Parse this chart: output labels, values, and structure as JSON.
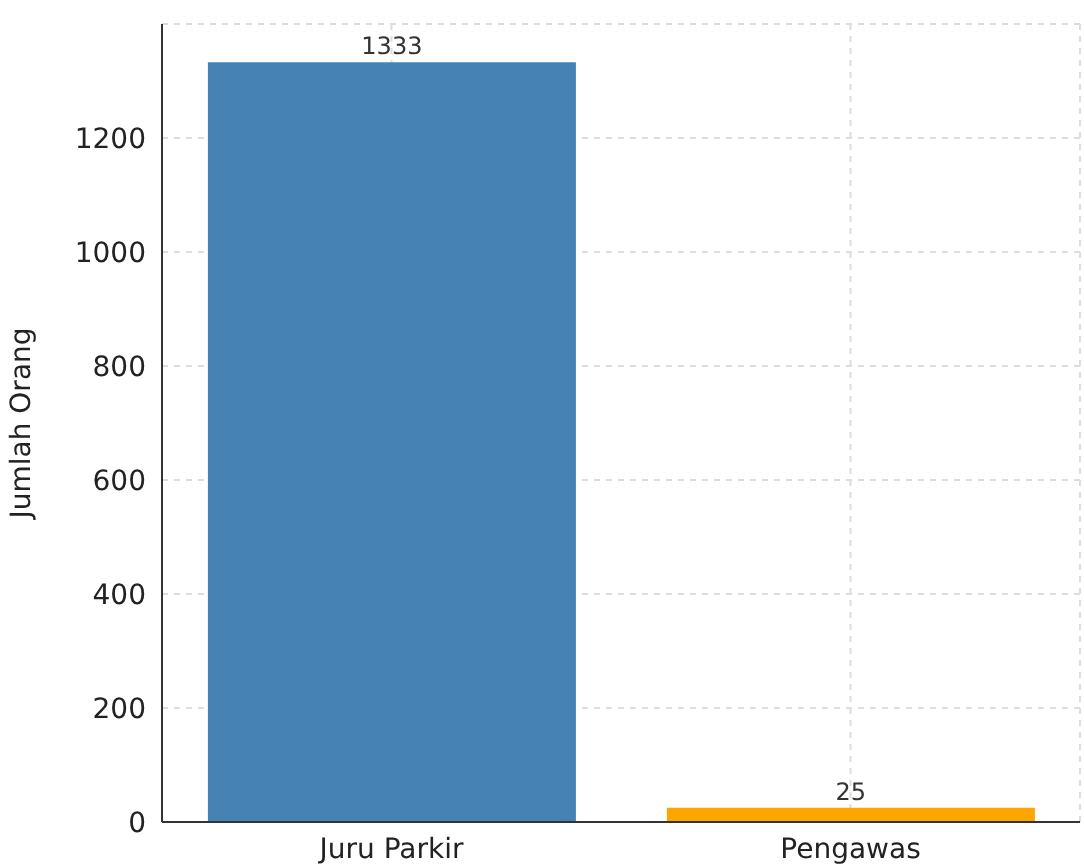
{
  "chart_data": {
    "type": "bar",
    "categories": [
      "Juru Parkir",
      "Pengawas"
    ],
    "values": [
      1333,
      25
    ],
    "colors": [
      "#4682b4",
      "#ffa500"
    ],
    "ylabel": "Jumlah Orang",
    "ylim": [
      0,
      1400
    ],
    "yticks": [
      0,
      200,
      400,
      600,
      800,
      1000,
      1200
    ],
    "grid": true,
    "data_labels": true
  }
}
